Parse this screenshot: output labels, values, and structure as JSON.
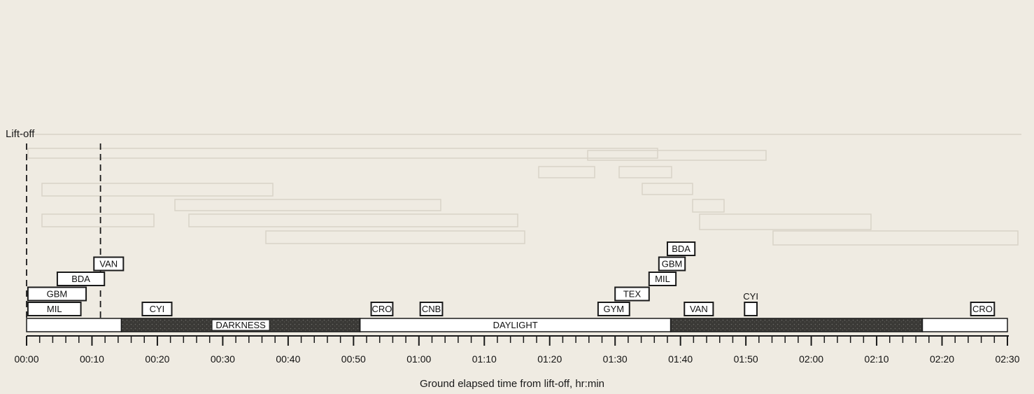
{
  "lift_off_label": "Lift-off",
  "xlabel": "Ground elapsed time from lift-off, hr:min",
  "colors": {
    "background": "#efebe2",
    "ink": "#1a1a1a",
    "darkness": "#3a3936",
    "daylight": "#ffffff",
    "ghost": "#d6d0c4"
  },
  "chart_data": {
    "type": "timeline",
    "x_unit": "minutes from lift-off",
    "x_range": [
      0,
      150
    ],
    "ticks": [
      "00:00",
      "00:10",
      "00:20",
      "00:30",
      "00:40",
      "00:50",
      "01:00",
      "01:10",
      "01:20",
      "01:30",
      "01:40",
      "01:50",
      "02:00",
      "02:10",
      "02:20",
      "02:30"
    ],
    "lighting": [
      {
        "label": "",
        "kind": "daylight",
        "start": 0,
        "end": 14.5
      },
      {
        "label": "DARKNESS",
        "kind": "darkness",
        "start": 14.5,
        "end": 51
      },
      {
        "label": "DAYLIGHT",
        "kind": "daylight",
        "start": 51,
        "end": 98.5
      },
      {
        "label": "",
        "kind": "darkness",
        "start": 98.5,
        "end": 137
      },
      {
        "label": "",
        "kind": "daylight",
        "start": 137,
        "end": 150
      }
    ],
    "station_passes": [
      {
        "label": "MIL",
        "start": 0.2,
        "end": 8.3,
        "level": 0
      },
      {
        "label": "GBM",
        "start": 0.2,
        "end": 9.1,
        "level": 1
      },
      {
        "label": "BDA",
        "start": 4.7,
        "end": 11.9,
        "level": 2
      },
      {
        "label": "VAN",
        "start": 10.3,
        "end": 14.8,
        "level": 3
      },
      {
        "label": "CYI",
        "start": 17.7,
        "end": 22.2,
        "level": 0
      },
      {
        "label": "CRO",
        "start": 52.7,
        "end": 56.0,
        "level": 0
      },
      {
        "label": "CNB",
        "start": 60.2,
        "end": 63.6,
        "level": 0
      },
      {
        "label": "GYM",
        "start": 87.4,
        "end": 92.2,
        "level": 0
      },
      {
        "label": "TEX",
        "start": 90.0,
        "end": 95.2,
        "level": 1
      },
      {
        "label": "MIL",
        "start": 95.2,
        "end": 99.3,
        "level": 2
      },
      {
        "label": "GBM",
        "start": 96.7,
        "end": 100.7,
        "level": 3
      },
      {
        "label": "BDA",
        "start": 98.0,
        "end": 102.2,
        "level": 4
      },
      {
        "label": "VAN",
        "start": 100.6,
        "end": 105.0,
        "level": 0
      },
      {
        "label": "CYI",
        "start": 109.8,
        "end": 111.7,
        "level": 0,
        "label_above": true
      },
      {
        "label": "CRO",
        "start": 144.4,
        "end": 148.0,
        "level": 0
      }
    ],
    "markers": [
      {
        "label": "Lift-off",
        "at": 0
      },
      {
        "label": "",
        "at": 11.3
      }
    ]
  }
}
